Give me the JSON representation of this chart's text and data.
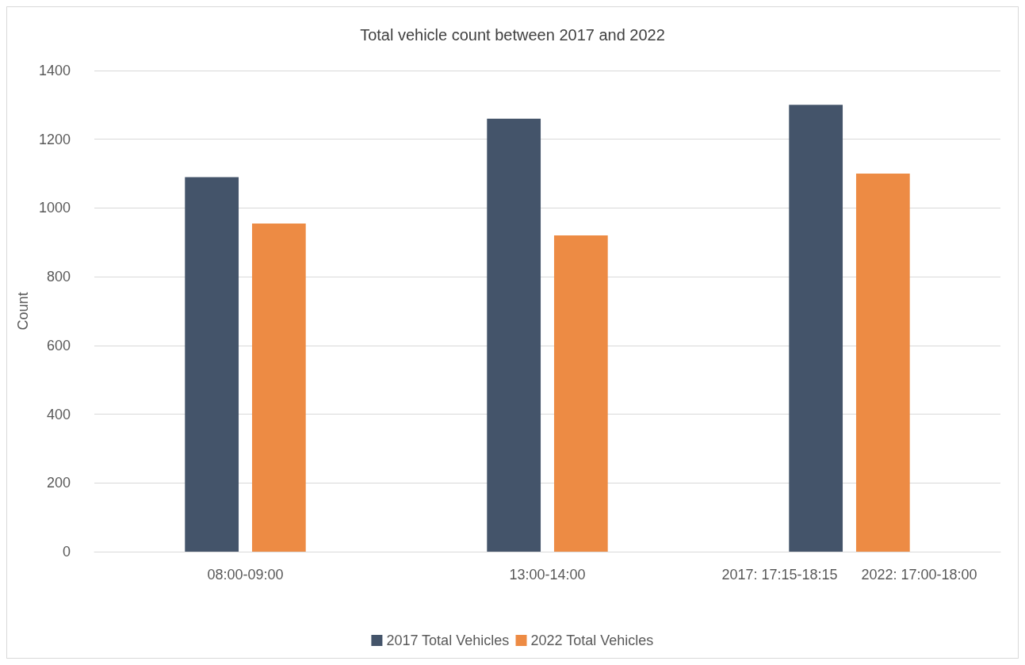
{
  "chart_data": {
    "type": "bar",
    "title": "Total vehicle count between 2017 and 2022",
    "ylabel": "Count",
    "categories": [
      "08:00-09:00",
      "13:00-14:00",
      "2017: 17:15-18:15      2022: 17:00-18:00"
    ],
    "series": [
      {
        "name": "2017 Total Vehicles",
        "color": "#44546a",
        "values": [
          1090,
          1260,
          1300
        ]
      },
      {
        "name": "2022 Total Vehicles",
        "color": "#ed8b44",
        "values": [
          955,
          920,
          1100
        ]
      }
    ],
    "ylim": [
      0,
      1400
    ],
    "yticks": [
      0,
      200,
      400,
      600,
      800,
      1000,
      1200,
      1400
    ],
    "grid": "y",
    "legend": "bottom"
  }
}
